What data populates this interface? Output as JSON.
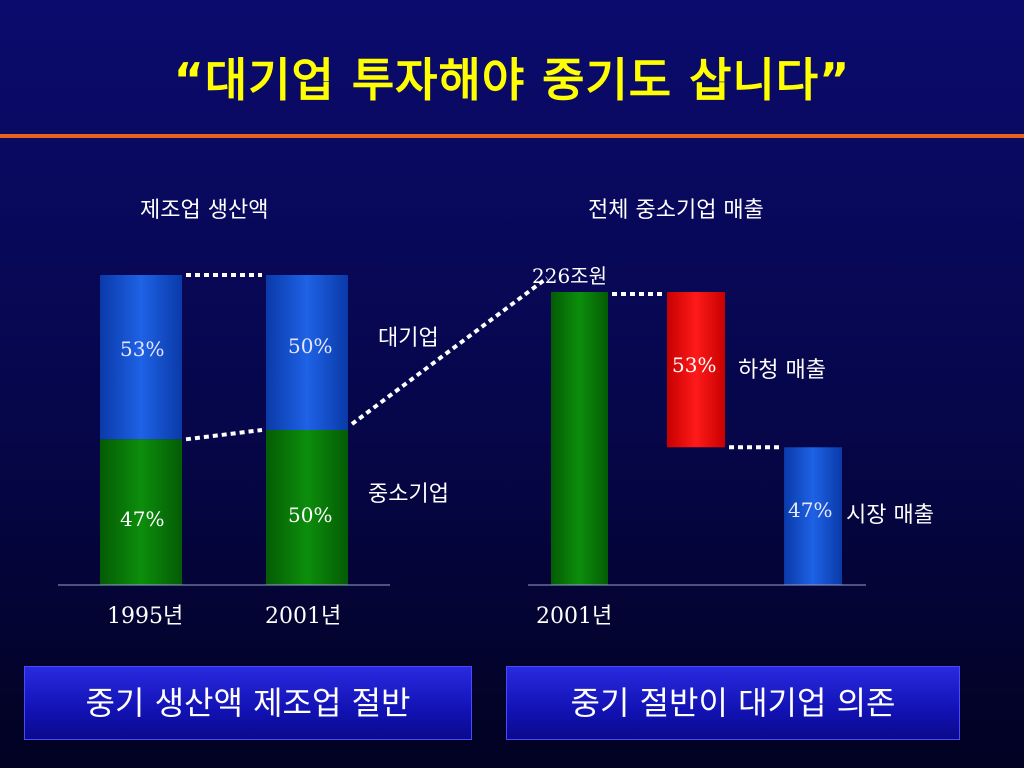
{
  "title": "“대기업 투자해야 중기도 삽니다”",
  "colors": {
    "title": "#ffff00",
    "rule": "#e8641e",
    "green": "#0b8a0b",
    "blue": "#1c5ad8",
    "red": "#ff0000"
  },
  "chart_data": [
    {
      "type": "bar",
      "title": "제조업 생산액",
      "categories": [
        "1995년",
        "2001년"
      ],
      "series": [
        {
          "name": "중소기업",
          "values": [
            47,
            50
          ],
          "labels": [
            "47%",
            "50%"
          ]
        },
        {
          "name": "대기업",
          "values": [
            53,
            50
          ],
          "labels": [
            "53%",
            "50%"
          ]
        }
      ],
      "ylim": [
        0,
        100
      ]
    },
    {
      "type": "bar",
      "title": "전체 중소기업 매출",
      "categories": [
        "2001년"
      ],
      "total_label": "226조원",
      "total_value": 100,
      "components": [
        {
          "name": "하청 매출",
          "value": 53,
          "label": "53%"
        },
        {
          "name": "시장 매출",
          "value": 47,
          "label": "47%"
        }
      ],
      "ylim": [
        0,
        100
      ]
    }
  ],
  "captions": [
    "중기 생산액 제조업 절반",
    "중기 절반이 대기업 의존"
  ]
}
